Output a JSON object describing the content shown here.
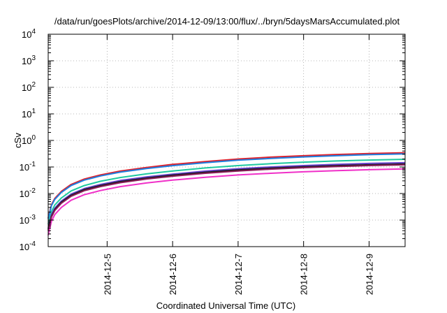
{
  "chart_data": {
    "type": "line",
    "title": "/data/run/goesPlots/archive/2014-12-09/13:00/flux/../bryn/5daysMarsAccumulated.plot",
    "xlabel": "Coordinated Universal Time (UTC)",
    "ylabel": "cSv",
    "y_scale": "log",
    "ylim": [
      0.0001,
      10000
    ],
    "y_ticks": [
      {
        "value": 0.0001,
        "base": "10",
        "exp": "-4"
      },
      {
        "value": 0.001,
        "base": "10",
        "exp": "-3"
      },
      {
        "value": 0.01,
        "base": "10",
        "exp": "-2"
      },
      {
        "value": 0.1,
        "base": "10",
        "exp": "-1"
      },
      {
        "value": 1,
        "base": "10",
        "exp": "0"
      },
      {
        "value": 10,
        "base": "10",
        "exp": "1"
      },
      {
        "value": 100,
        "base": "10",
        "exp": "2"
      },
      {
        "value": 1000,
        "base": "10",
        "exp": "3"
      },
      {
        "value": 10000,
        "base": "10",
        "exp": "4"
      }
    ],
    "xlim": [
      4.1,
      9.55
    ],
    "x_ticks": [
      {
        "value": 5,
        "label": "2014-12-5"
      },
      {
        "value": 6,
        "label": "2014-12-6"
      },
      {
        "value": 7,
        "label": "2014-12-7"
      },
      {
        "value": 8,
        "label": "2014-12-8"
      },
      {
        "value": 9,
        "label": "2014-12-9"
      }
    ],
    "grid": true,
    "x": [
      4.1,
      4.15,
      4.2,
      4.3,
      4.45,
      4.65,
      4.9,
      5.2,
      5.6,
      6.0,
      6.5,
      7.0,
      7.5,
      8.0,
      8.5,
      9.0,
      9.55
    ],
    "series": [
      {
        "color": "#e0202a",
        "values": [
          0.0012,
          0.0038,
          0.0065,
          0.012,
          0.022,
          0.035,
          0.05,
          0.07,
          0.095,
          0.125,
          0.16,
          0.2,
          0.235,
          0.265,
          0.295,
          0.32,
          0.345
        ]
      },
      {
        "color": "#1e7fe0",
        "values": [
          0.0011,
          0.0035,
          0.006,
          0.011,
          0.02,
          0.032,
          0.046,
          0.064,
          0.087,
          0.112,
          0.145,
          0.18,
          0.21,
          0.24,
          0.265,
          0.29,
          0.31
        ]
      },
      {
        "color": "#1fc8a0",
        "values": [
          0.0007,
          0.0021,
          0.0037,
          0.0068,
          0.0125,
          0.02,
          0.029,
          0.04,
          0.055,
          0.071,
          0.092,
          0.113,
          0.133,
          0.152,
          0.168,
          0.182,
          0.195
        ]
      },
      {
        "color": "#6a3fd0",
        "values": [
          0.0005,
          0.0016,
          0.0028,
          0.0052,
          0.0095,
          0.0154,
          0.022,
          0.031,
          0.042,
          0.054,
          0.07,
          0.086,
          0.1,
          0.113,
          0.125,
          0.136,
          0.145
        ]
      },
      {
        "color": "#1a1a1a",
        "values": [
          0.00045,
          0.0014,
          0.0025,
          0.0047,
          0.0086,
          0.014,
          0.02,
          0.028,
          0.038,
          0.049,
          0.063,
          0.077,
          0.09,
          0.102,
          0.112,
          0.121,
          0.13
        ]
      },
      {
        "color": "#8a1c58",
        "values": [
          0.0004,
          0.0013,
          0.0023,
          0.0043,
          0.0079,
          0.0128,
          0.0183,
          0.0256,
          0.035,
          0.045,
          0.058,
          0.071,
          0.083,
          0.094,
          0.104,
          0.113,
          0.121
        ]
      },
      {
        "color": "#f030c8",
        "values": [
          0.00027,
          0.0009,
          0.0016,
          0.003,
          0.0056,
          0.009,
          0.013,
          0.0182,
          0.025,
          0.032,
          0.041,
          0.05,
          0.058,
          0.066,
          0.073,
          0.079,
          0.085
        ]
      }
    ]
  }
}
